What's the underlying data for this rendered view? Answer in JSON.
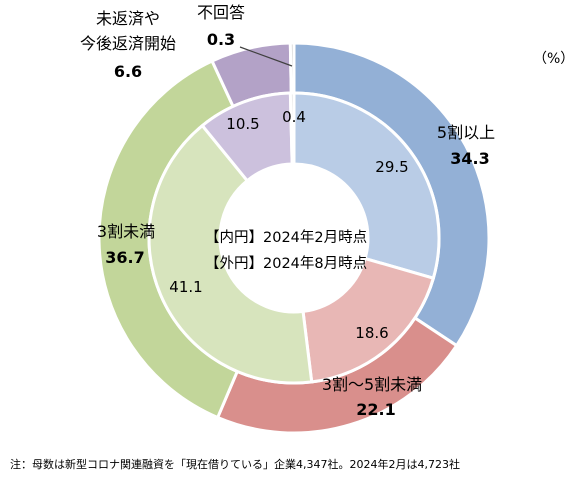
{
  "chart_data": {
    "type": "pie",
    "variant": "double-donut",
    "unit_label": "（%）",
    "center_labels": {
      "inner": "【内円】2024年2月時点",
      "outer": "【外円】2024年8月時点"
    },
    "categories": [
      "5割以上",
      "3割～5割未満",
      "3割未満",
      "未返済や今後返済開始",
      "不回答"
    ],
    "category_labels_display": [
      [
        "5割以上"
      ],
      [
        "3割～5割未満"
      ],
      [
        "3割未満"
      ],
      [
        "未返済や",
        "今後返済開始"
      ],
      [
        "不回答"
      ]
    ],
    "series": [
      {
        "values": [
          29.5,
          18.6,
          41.1,
          10.5,
          0.4
        ]
      },
      {
        "values": [
          34.3,
          22.1,
          36.7,
          6.6,
          0.3
        ]
      }
    ],
    "colors_outer": [
      "#93b0d6",
      "#d98f8c",
      "#c2d69a",
      "#b3a2c7",
      "#c8c8c8"
    ],
    "colors_inner": [
      "#b9cce6",
      "#e8b7b5",
      "#d7e4bd",
      "#ccc1dd",
      "#dcdcdc"
    ],
    "note": "注：母数は新型コロナ関連融資を「現在借りている」企業4,347社。2024年2月は4,723社"
  }
}
